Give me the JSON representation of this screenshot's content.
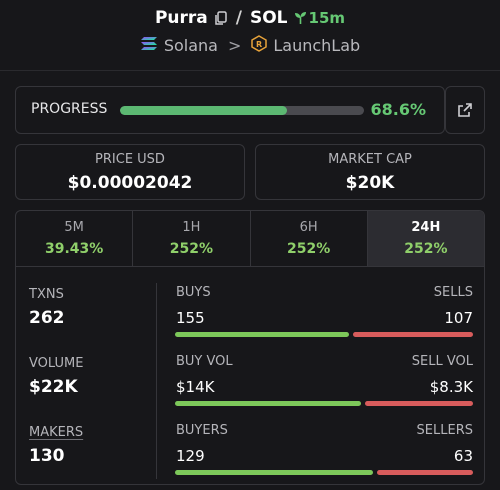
{
  "header": {
    "token": "Purra",
    "separator": "/",
    "quote": "SOL",
    "age": "15m",
    "chain": "Solana",
    "chevron": ">",
    "platform": "LaunchLab"
  },
  "progress": {
    "label": "PROGRESS",
    "value_text": "68.6%",
    "fraction": 0.686
  },
  "stats": {
    "price_label": "PRICE USD",
    "price_value": "$0.00002042",
    "mcap_label": "MARKET CAP",
    "mcap_value": "$20K"
  },
  "tabs": [
    {
      "label": "5M",
      "value": "39.43%"
    },
    {
      "label": "1H",
      "value": "252%"
    },
    {
      "label": "6H",
      "value": "252%"
    },
    {
      "label": "24H",
      "value": "252%",
      "active": true
    }
  ],
  "metrics": {
    "txns_label": "TXNS",
    "txns_value": "262",
    "volume_label": "VOLUME",
    "volume_value": "$22K",
    "makers_label": "MAKERS",
    "makers_value": "130"
  },
  "pairs": [
    {
      "left_label": "BUYS",
      "right_label": "SELLS",
      "left_value": "155",
      "right_value": "107",
      "buy_fraction": 0.59
    },
    {
      "left_label": "BUY VOL",
      "right_label": "SELL VOL",
      "left_value": "$14K",
      "right_value": "$8.3K",
      "buy_fraction": 0.63
    },
    {
      "left_label": "BUYERS",
      "right_label": "SELLERS",
      "left_value": "129",
      "right_value": "63",
      "buy_fraction": 0.67
    }
  ],
  "colors": {
    "accent_green": "#66c874",
    "buy_bar": "#7dc85a",
    "sell_bar": "#d85c5c"
  }
}
